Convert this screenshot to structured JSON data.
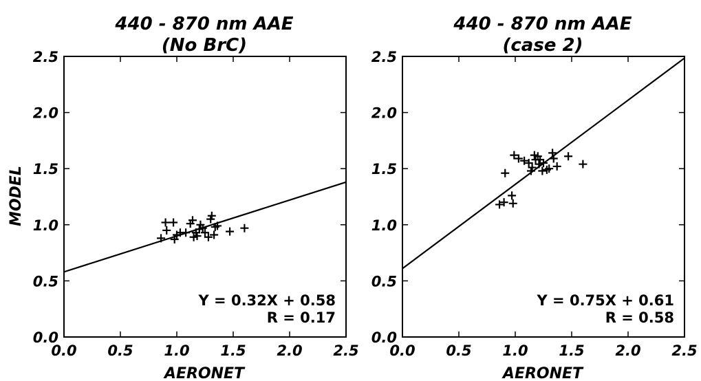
{
  "chart_data": [
    {
      "type": "scatter",
      "title": "440 - 870 nm AAE",
      "subtitle": "(No BrC)",
      "xlabel": "AERONET",
      "ylabel": "MODEL",
      "xlim": [
        0.0,
        2.5
      ],
      "ylim": [
        0.0,
        2.5
      ],
      "xticks": [
        "0.0",
        "0.5",
        "1.0",
        "1.5",
        "2.0",
        "2.5"
      ],
      "yticks": [
        "0.0",
        "0.5",
        "1.0",
        "1.5",
        "2.0",
        "2.5"
      ],
      "grid": false,
      "marker": "+",
      "color": "#000000",
      "points": [
        [
          0.86,
          0.88
        ],
        [
          0.9,
          1.02
        ],
        [
          0.91,
          0.95
        ],
        [
          0.97,
          1.02
        ],
        [
          0.98,
          0.87
        ],
        [
          1.0,
          0.91
        ],
        [
          1.03,
          0.93
        ],
        [
          1.08,
          0.93
        ],
        [
          1.12,
          1.01
        ],
        [
          1.14,
          1.04
        ],
        [
          1.15,
          0.89
        ],
        [
          1.17,
          0.93
        ],
        [
          1.18,
          0.9
        ],
        [
          1.2,
          0.96
        ],
        [
          1.21,
          1.0
        ],
        [
          1.23,
          0.97
        ],
        [
          1.25,
          0.93
        ],
        [
          1.28,
          0.89
        ],
        [
          1.3,
          1.05
        ],
        [
          1.31,
          1.08
        ],
        [
          1.33,
          0.91
        ],
        [
          1.34,
          0.98
        ],
        [
          1.36,
          0.99
        ],
        [
          1.47,
          0.94
        ],
        [
          1.6,
          0.97
        ]
      ],
      "fit": {
        "slope": 0.32,
        "intercept": 0.58
      },
      "annotation": {
        "equation": "Y = 0.32X + 0.58",
        "r": "R = 0.17"
      }
    },
    {
      "type": "scatter",
      "title": "440 - 870 nm AAE",
      "subtitle": "(case 2)",
      "xlabel": "AERONET",
      "ylabel": "",
      "xlim": [
        0.0,
        2.5
      ],
      "ylim": [
        0.0,
        2.5
      ],
      "xticks": [
        "0.0",
        "0.5",
        "1.0",
        "1.5",
        "2.0",
        "2.5"
      ],
      "yticks": [
        "0.0",
        "0.5",
        "1.0",
        "1.5",
        "2.0",
        "2.5"
      ],
      "grid": false,
      "marker": "+",
      "color": "#000000",
      "points": [
        [
          0.86,
          1.18
        ],
        [
          0.9,
          1.2
        ],
        [
          0.91,
          1.46
        ],
        [
          0.97,
          1.26
        ],
        [
          0.98,
          1.19
        ],
        [
          0.99,
          1.62
        ],
        [
          1.03,
          1.59
        ],
        [
          1.08,
          1.57
        ],
        [
          1.12,
          1.55
        ],
        [
          1.14,
          1.48
        ],
        [
          1.15,
          1.51
        ],
        [
          1.17,
          1.62
        ],
        [
          1.18,
          1.58
        ],
        [
          1.2,
          1.61
        ],
        [
          1.21,
          1.54
        ],
        [
          1.22,
          1.58
        ],
        [
          1.24,
          1.48
        ],
        [
          1.25,
          1.55
        ],
        [
          1.28,
          1.49
        ],
        [
          1.3,
          1.5
        ],
        [
          1.33,
          1.64
        ],
        [
          1.34,
          1.59
        ],
        [
          1.37,
          1.52
        ],
        [
          1.47,
          1.61
        ],
        [
          1.6,
          1.54
        ]
      ],
      "fit": {
        "slope": 0.75,
        "intercept": 0.61
      },
      "annotation": {
        "equation": "Y = 0.75X + 0.61",
        "r": "R = 0.58"
      }
    }
  ]
}
